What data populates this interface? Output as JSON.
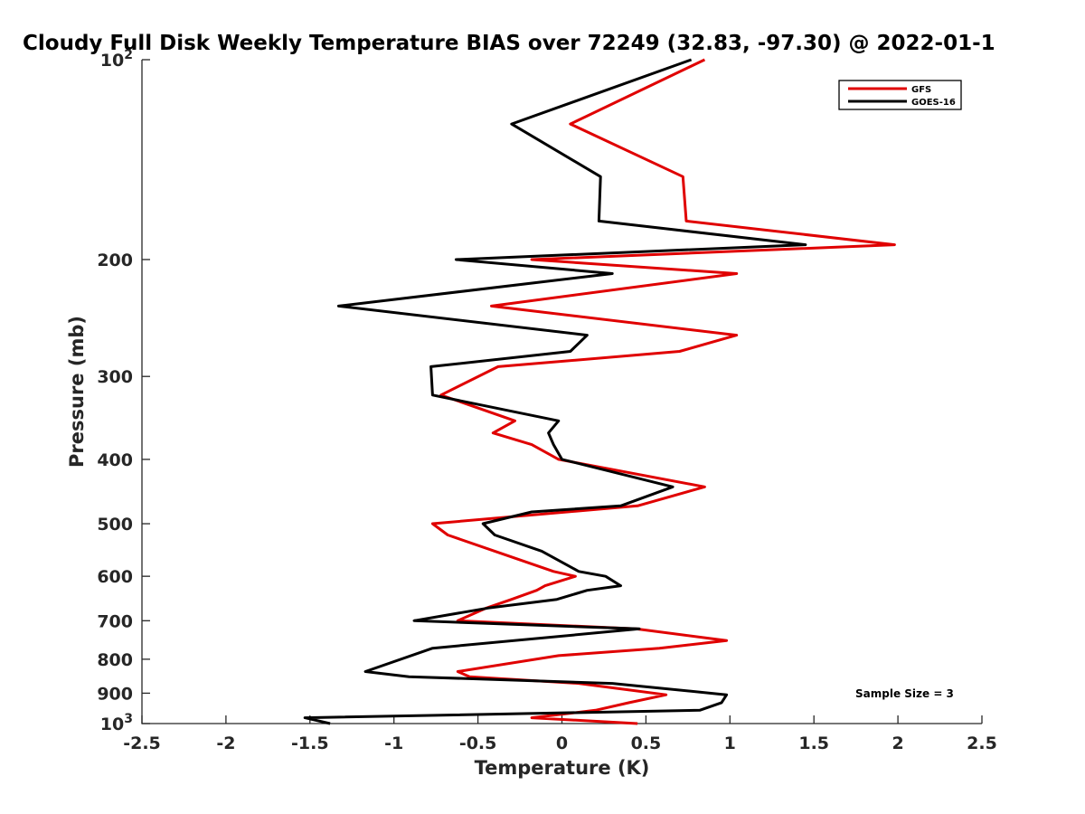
{
  "chart_data": {
    "type": "line",
    "title": "Cloudy Full Disk Weekly Temperature BIAS over 72249 (32.83, -97.30) @ 2022-01-1",
    "xlabel": "Temperature (K)",
    "ylabel": "Pressure (mb)",
    "xlim": [
      -2.5,
      2.5
    ],
    "ylim": [
      100,
      1000
    ],
    "y_scale": "log",
    "y_reversed": true,
    "x_ticks": [
      "-2.5",
      "-2",
      "-1.5",
      "-1",
      "-0.5",
      "0",
      "0.5",
      "1",
      "1.5",
      "2",
      "2.5"
    ],
    "y_ticks": [
      {
        "value": 100,
        "label": "10",
        "exp": "2"
      },
      {
        "value": 200,
        "label": "200"
      },
      {
        "value": 300,
        "label": "300"
      },
      {
        "value": 400,
        "label": "400"
      },
      {
        "value": 500,
        "label": "500"
      },
      {
        "value": 600,
        "label": "600"
      },
      {
        "value": 700,
        "label": "700"
      },
      {
        "value": 800,
        "label": "800"
      },
      {
        "value": 900,
        "label": "900"
      },
      {
        "value": 1000,
        "label": "10",
        "exp": "3"
      }
    ],
    "grid": false,
    "legend_position": "top-right",
    "series": [
      {
        "name": "GFS",
        "color": "#e00000",
        "points": [
          [
            0.85,
            100
          ],
          [
            0.05,
            125
          ],
          [
            0.72,
            150
          ],
          [
            0.74,
            175
          ],
          [
            1.98,
            190
          ],
          [
            -0.18,
            200
          ],
          [
            1.04,
            210
          ],
          [
            -0.42,
            235
          ],
          [
            1.04,
            260
          ],
          [
            0.7,
            275
          ],
          [
            -0.38,
            290
          ],
          [
            -0.72,
            320
          ],
          [
            -0.28,
            350
          ],
          [
            -0.41,
            365
          ],
          [
            -0.18,
            380
          ],
          [
            -0.02,
            400
          ],
          [
            0.85,
            440
          ],
          [
            0.45,
            470
          ],
          [
            -0.77,
            500
          ],
          [
            -0.68,
            520
          ],
          [
            -0.4,
            550
          ],
          [
            -0.05,
            590
          ],
          [
            0.08,
            600
          ],
          [
            -0.1,
            620
          ],
          [
            -0.15,
            630
          ],
          [
            -0.3,
            650
          ],
          [
            -0.45,
            670
          ],
          [
            -0.62,
            700
          ],
          [
            0.44,
            720
          ],
          [
            0.98,
            750
          ],
          [
            0.58,
            770
          ],
          [
            -0.02,
            790
          ],
          [
            -0.62,
            835
          ],
          [
            -0.55,
            850
          ],
          [
            0.1,
            870
          ],
          [
            0.62,
            905
          ],
          [
            0.4,
            930
          ],
          [
            0.2,
            955
          ],
          [
            -0.18,
            980
          ],
          [
            0.45,
            1000
          ]
        ]
      },
      {
        "name": "GOES-16",
        "color": "#000000",
        "points": [
          [
            0.77,
            100
          ],
          [
            -0.3,
            125
          ],
          [
            0.23,
            150
          ],
          [
            0.22,
            175
          ],
          [
            1.45,
            190
          ],
          [
            -0.63,
            200
          ],
          [
            0.3,
            210
          ],
          [
            -1.33,
            235
          ],
          [
            0.15,
            260
          ],
          [
            0.05,
            275
          ],
          [
            -0.78,
            290
          ],
          [
            -0.77,
            320
          ],
          [
            -0.02,
            350
          ],
          [
            -0.08,
            365
          ],
          [
            -0.05,
            380
          ],
          [
            0.0,
            400
          ],
          [
            0.66,
            440
          ],
          [
            0.35,
            470
          ],
          [
            -0.18,
            480
          ],
          [
            -0.47,
            500
          ],
          [
            -0.4,
            520
          ],
          [
            -0.12,
            550
          ],
          [
            0.1,
            590
          ],
          [
            0.26,
            600
          ],
          [
            0.35,
            620
          ],
          [
            0.15,
            630
          ],
          [
            -0.03,
            650
          ],
          [
            -0.44,
            670
          ],
          [
            -0.88,
            700
          ],
          [
            0.46,
            720
          ],
          [
            -0.77,
            770
          ],
          [
            -1.17,
            835
          ],
          [
            -0.91,
            850
          ],
          [
            0.3,
            870
          ],
          [
            0.98,
            905
          ],
          [
            0.95,
            930
          ],
          [
            0.82,
            955
          ],
          [
            -1.53,
            980
          ],
          [
            -1.38,
            1000
          ]
        ]
      }
    ],
    "annotations": [
      {
        "text": "Sample Size = 3"
      }
    ]
  }
}
